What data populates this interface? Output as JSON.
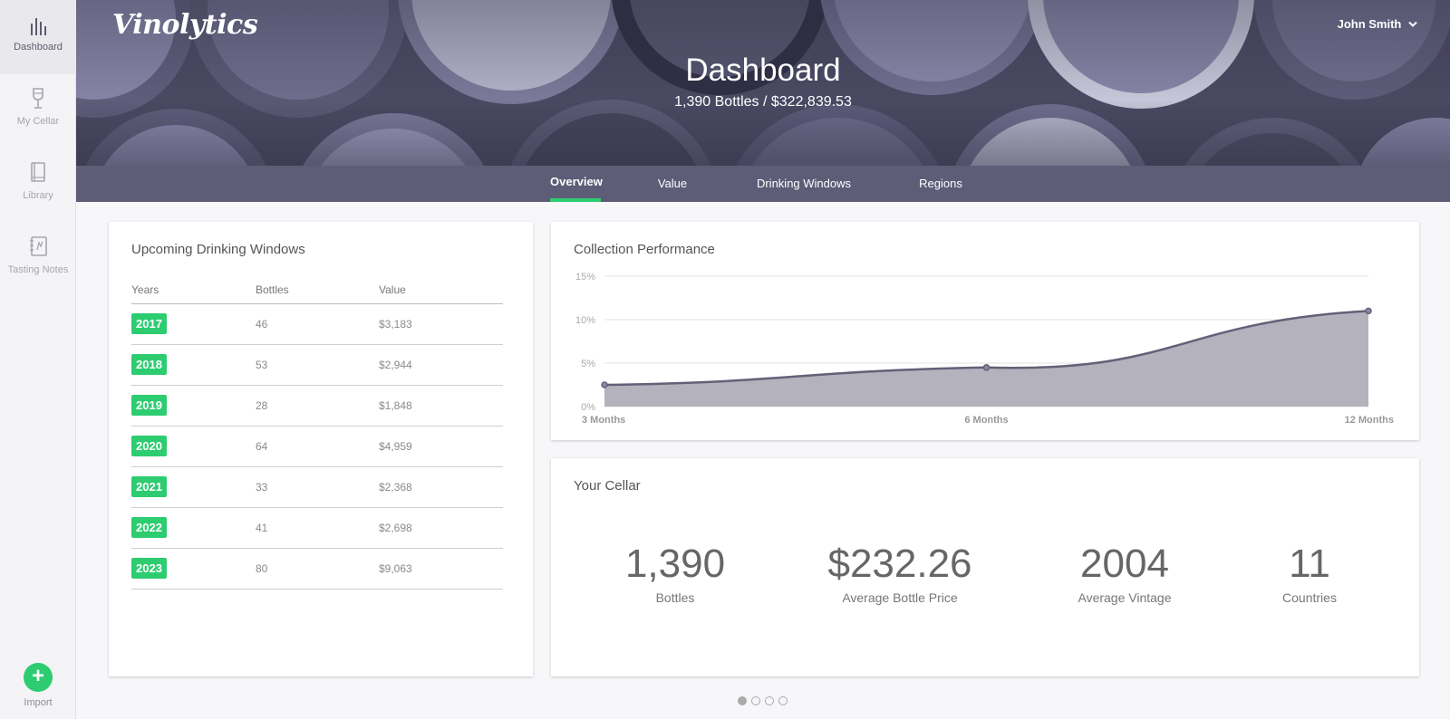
{
  "sidebar": {
    "items": [
      {
        "label": "Dashboard",
        "icon": "bar-chart-icon",
        "active": true
      },
      {
        "label": "My Cellar",
        "icon": "wine-glass-icon",
        "active": false
      },
      {
        "label": "Library",
        "icon": "book-icon",
        "active": false
      },
      {
        "label": "Tasting Notes",
        "icon": "notebook-icon",
        "active": false
      }
    ],
    "import_label": "Import",
    "import_icon": "plus-icon"
  },
  "header": {
    "logo": "Vinolytics",
    "user": "John Smith",
    "user_icon": "chevron-down-icon",
    "title": "Dashboard",
    "subtitle": "1,390 Bottles / $322,839.53"
  },
  "tabs": [
    {
      "label": "Overview",
      "active": true
    },
    {
      "label": "Value",
      "active": false
    },
    {
      "label": "Drinking Windows",
      "active": false
    },
    {
      "label": "Regions",
      "active": false
    }
  ],
  "drinking_windows": {
    "title": "Upcoming Drinking Windows",
    "columns": [
      "Years",
      "Bottles",
      "Value"
    ],
    "rows": [
      {
        "year": "2017",
        "bottles": "46",
        "value": "$3,183"
      },
      {
        "year": "2018",
        "bottles": "53",
        "value": "$2,944"
      },
      {
        "year": "2019",
        "bottles": "28",
        "value": "$1,848"
      },
      {
        "year": "2020",
        "bottles": "64",
        "value": "$4,959"
      },
      {
        "year": "2021",
        "bottles": "33",
        "value": "$2,368"
      },
      {
        "year": "2022",
        "bottles": "41",
        "value": "$2,698"
      },
      {
        "year": "2023",
        "bottles": "80",
        "value": "$9,063"
      }
    ]
  },
  "performance": {
    "title": "Collection Performance"
  },
  "chart_data": {
    "type": "area",
    "title": "Collection Performance",
    "categories": [
      "3 Months",
      "6 Months",
      "12 Months"
    ],
    "values": [
      2.5,
      4.5,
      11
    ],
    "y_ticks": [
      "0%",
      "5%",
      "10%",
      "15%"
    ],
    "ylim": [
      0,
      15
    ],
    "grid": true,
    "fill_color": "#b3b2bd",
    "line_color": "#626177"
  },
  "cellar": {
    "title": "Your Cellar",
    "stats": [
      {
        "value": "1,390",
        "label": "Bottles"
      },
      {
        "value": "$232.26",
        "label": "Average Bottle Price"
      },
      {
        "value": "2004",
        "label": "Average Vintage"
      },
      {
        "value": "11",
        "label": "Countries"
      }
    ]
  },
  "pager": {
    "count": 4,
    "active": 0
  },
  "colors": {
    "accent": "#2ecc71",
    "hero": "#3f3e55",
    "tabs": "#5e5d78"
  }
}
